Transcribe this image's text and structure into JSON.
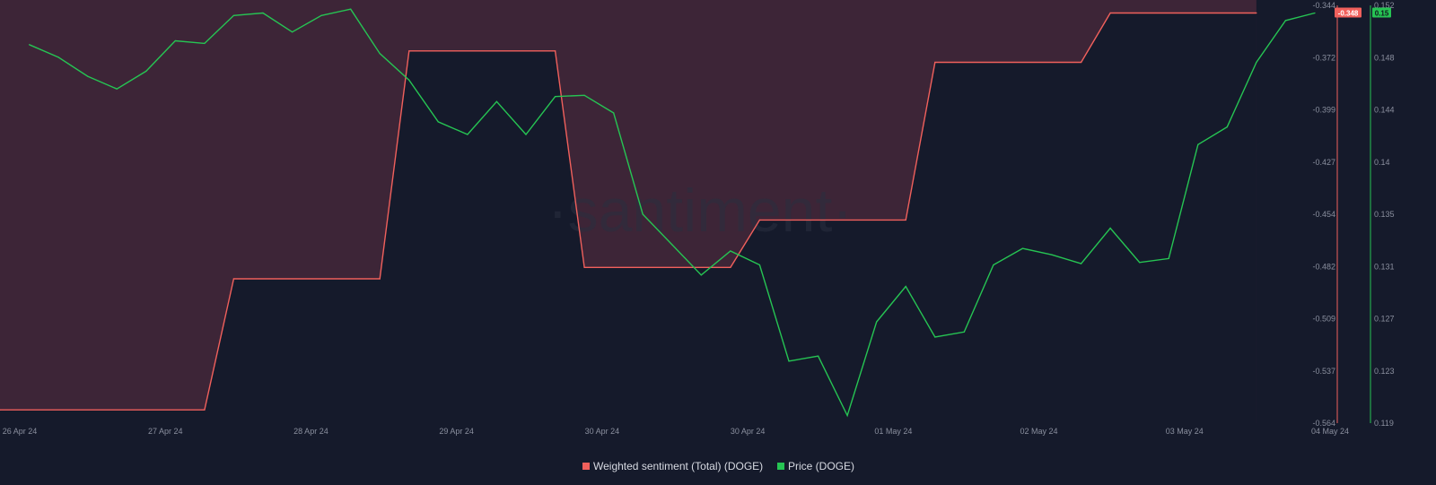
{
  "watermark": "·santiment·",
  "colors": {
    "background": "#151a2b",
    "sentiment": "#f0605c",
    "sentiment_fill": "#3d2537",
    "price": "#26c453",
    "badge_text_dark": "#10131e"
  },
  "legend": [
    {
      "label": "Weighted sentiment (Total) (DOGE)",
      "color": "#f0605c"
    },
    {
      "label": "Price (DOGE)",
      "color": "#26c453"
    }
  ],
  "chart_data": {
    "type": "line",
    "x_ticks": [
      "26 Apr 24",
      "27 Apr 24",
      "28 Apr 24",
      "29 Apr 24",
      "30 Apr 24",
      "30 Apr 24",
      "01 May 24",
      "02 May 24",
      "03 May 24",
      "04 May 24"
    ],
    "x_range": [
      0,
      45
    ],
    "series": [
      {
        "name": "Weighted sentiment (Total) (DOGE)",
        "axis": "left",
        "color": "#f0605c",
        "style": "step",
        "x": [
          0,
          7,
          8,
          13,
          14,
          19,
          20,
          25,
          26,
          31,
          32,
          37,
          38,
          43
        ],
        "values": [
          -0.557,
          -0.557,
          -0.488,
          -0.488,
          -0.368,
          -0.368,
          -0.482,
          -0.482,
          -0.457,
          -0.457,
          -0.374,
          -0.374,
          -0.348,
          -0.348
        ]
      },
      {
        "name": "Price (DOGE)",
        "axis": "right",
        "color": "#26c453",
        "style": "line",
        "x": [
          1,
          2,
          3,
          4,
          5,
          6,
          7,
          8,
          9,
          10,
          11,
          12,
          13,
          14,
          15,
          16,
          17,
          18,
          19,
          20,
          21,
          22,
          23,
          24,
          25,
          26,
          27,
          28,
          29,
          30,
          31,
          32,
          33,
          34,
          35,
          36,
          37,
          38,
          39,
          40,
          41,
          42,
          43,
          44,
          45
        ],
        "values": [
          0.1489,
          0.1479,
          0.1464,
          0.1454,
          0.1468,
          0.1492,
          0.149,
          0.1512,
          0.1514,
          0.1499,
          0.1512,
          0.1517,
          0.1482,
          0.1461,
          0.1428,
          0.1418,
          0.1444,
          0.1418,
          0.1448,
          0.1449,
          0.1435,
          0.1355,
          0.1331,
          0.1307,
          0.1326,
          0.1315,
          0.1239,
          0.1243,
          0.1196,
          0.127,
          0.1298,
          0.1258,
          0.1262,
          0.1315,
          0.1328,
          0.1323,
          0.1316,
          0.1344,
          0.1317,
          0.132,
          0.141,
          0.1424,
          0.1475,
          0.1508,
          0.1514
        ]
      }
    ],
    "y_left": {
      "ticks": [
        "-0.344",
        "-0.372",
        "-0.399",
        "-0.427",
        "-0.454",
        "-0.482",
        "-0.509",
        "-0.537",
        "-0.564"
      ],
      "range": [
        -0.564,
        -0.344
      ],
      "current_label": "-0.348"
    },
    "y_right": {
      "ticks": [
        "0.152",
        "0.148",
        "0.144",
        "0.14",
        "0.135",
        "0.131",
        "0.127",
        "0.123",
        "0.119"
      ],
      "range": [
        0.119,
        0.152
      ],
      "current_label": "0.15"
    },
    "grid": false,
    "legend_position": "bottom-center"
  }
}
